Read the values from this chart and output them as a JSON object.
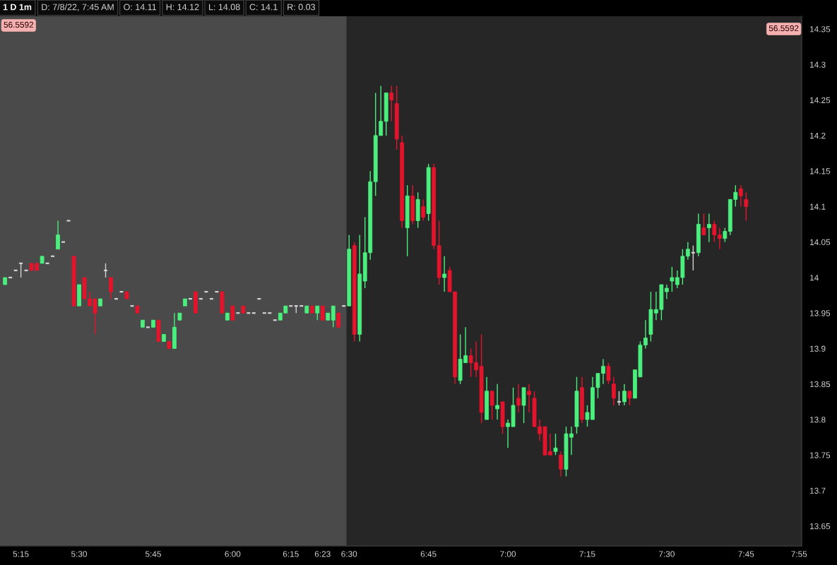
{
  "chart_data": {
    "type": "candlestick",
    "title": "1 D 1m",
    "annotations": [
      "D: 7/8/22, 7:45 AM",
      "O: 14.11",
      "H: 14.12",
      "L: 14.08",
      "C: 14.1",
      "R: 0.03",
      "56.5592",
      "56.5592"
    ],
    "categories": [
      null,
      null,
      null,
      "5:15",
      null,
      null,
      null,
      null,
      null,
      null,
      null,
      null,
      null,
      null,
      "5:30",
      null,
      null,
      null,
      null,
      null,
      null,
      null,
      null,
      null,
      null,
      null,
      null,
      null,
      "5:45",
      null,
      null,
      null,
      null,
      null,
      null,
      null,
      null,
      null,
      null,
      null,
      null,
      null,
      null,
      "6:00",
      null,
      null,
      null,
      null,
      null,
      null,
      null,
      null,
      null,
      null,
      "6:15",
      null,
      null,
      null,
      null,
      null,
      "6:23",
      null,
      null,
      null,
      null,
      "6:30",
      null,
      null,
      null,
      null,
      null,
      null,
      null,
      null,
      null,
      null,
      null,
      null,
      null,
      null,
      "6:45",
      null,
      null,
      null,
      null,
      null,
      null,
      null,
      null,
      null,
      null,
      null,
      null,
      null,
      null,
      "7:00",
      null,
      null,
      null,
      null,
      null,
      null,
      null,
      null,
      null,
      null,
      null,
      null,
      null,
      null,
      "7:15",
      null,
      null,
      null,
      null,
      null,
      null,
      null,
      null,
      null,
      null,
      null,
      null,
      null,
      null,
      "7:30",
      null,
      null,
      null,
      null,
      null,
      null,
      null,
      null,
      null,
      null,
      null,
      null,
      null,
      null,
      "7:45",
      null,
      null,
      null,
      null,
      null,
      null,
      null,
      null,
      null,
      "7:55"
    ],
    "ohlc": [
      [
        13.99,
        14.0,
        13.99,
        14.0
      ],
      [
        14.0,
        14.0,
        14.0,
        14.0
      ],
      [
        14.01,
        14.01,
        14.01,
        14.01
      ],
      [
        14.02,
        14.02,
        14.0,
        14.02
      ],
      [
        14.01,
        14.01,
        14.01,
        14.01
      ],
      [
        14.02,
        14.02,
        14.01,
        14.01
      ],
      [
        14.02,
        14.02,
        14.01,
        14.01
      ],
      [
        14.02,
        14.03,
        14.02,
        14.03
      ],
      [
        14.02,
        14.02,
        14.02,
        14.02
      ],
      [
        14.03,
        14.03,
        14.03,
        14.03
      ],
      [
        14.04,
        14.08,
        14.04,
        14.06
      ],
      [
        14.05,
        14.05,
        14.05,
        14.05
      ],
      [
        14.08,
        14.08,
        14.08,
        14.08
      ],
      [
        14.03,
        14.03,
        13.96,
        13.96
      ],
      [
        13.96,
        13.99,
        13.96,
        13.99
      ],
      [
        14.0,
        14.0,
        13.97,
        13.97
      ],
      [
        13.97,
        13.98,
        13.96,
        13.96
      ],
      [
        13.97,
        13.97,
        13.92,
        13.95
      ],
      [
        13.96,
        13.97,
        13.96,
        13.97
      ],
      [
        14.01,
        14.02,
        14.0,
        14.01
      ],
      [
        14.0,
        14.0,
        13.97,
        13.98
      ],
      [
        13.97,
        13.97,
        13.97,
        13.97
      ],
      [
        13.98,
        13.98,
        13.98,
        13.98
      ],
      [
        13.98,
        13.98,
        13.97,
        13.97
      ],
      [
        13.96,
        13.96,
        13.96,
        13.96
      ],
      [
        13.96,
        13.96,
        13.95,
        13.95
      ],
      [
        13.93,
        13.94,
        13.93,
        13.94
      ],
      [
        13.93,
        13.93,
        13.93,
        13.93
      ],
      [
        13.93,
        13.94,
        13.93,
        13.94
      ],
      [
        13.94,
        13.94,
        13.91,
        13.91
      ],
      [
        13.91,
        13.92,
        13.91,
        13.92
      ],
      [
        13.91,
        13.91,
        13.9,
        13.9
      ],
      [
        13.9,
        13.95,
        13.9,
        13.93
      ],
      [
        13.94,
        13.95,
        13.94,
        13.95
      ],
      [
        13.96,
        13.97,
        13.96,
        13.97
      ],
      [
        13.97,
        13.97,
        13.97,
        13.97
      ],
      [
        13.98,
        13.98,
        13.95,
        13.95
      ],
      [
        13.97,
        13.97,
        13.97,
        13.97
      ],
      [
        13.98,
        13.98,
        13.98,
        13.98
      ],
      [
        13.97,
        13.97,
        13.97,
        13.97
      ],
      [
        13.98,
        13.98,
        13.98,
        13.98
      ],
      [
        13.98,
        13.98,
        13.95,
        13.95
      ],
      [
        13.94,
        13.95,
        13.94,
        13.95
      ],
      [
        13.96,
        13.96,
        13.94,
        13.94
      ],
      [
        13.95,
        13.95,
        13.95,
        13.95
      ],
      [
        13.96,
        13.96,
        13.95,
        13.95
      ],
      [
        13.95,
        13.95,
        13.95,
        13.95
      ],
      [
        13.95,
        13.95,
        13.95,
        13.95
      ],
      [
        13.97,
        13.97,
        13.97,
        13.97
      ],
      [
        13.95,
        13.95,
        13.95,
        13.95
      ],
      [
        13.95,
        13.95,
        13.95,
        13.95
      ],
      [
        13.94,
        13.94,
        13.94,
        13.94
      ],
      [
        13.94,
        13.95,
        13.94,
        13.95
      ],
      [
        13.95,
        13.96,
        13.95,
        13.96
      ],
      [
        13.96,
        13.96,
        13.96,
        13.96
      ],
      [
        13.96,
        13.96,
        13.95,
        13.96
      ],
      [
        13.96,
        13.96,
        13.96,
        13.96
      ],
      [
        13.95,
        13.96,
        13.95,
        13.96
      ],
      [
        13.96,
        13.96,
        13.95,
        13.95
      ],
      [
        13.95,
        13.96,
        13.94,
        13.96
      ],
      [
        13.96,
        13.96,
        13.94,
        13.94
      ],
      [
        13.94,
        13.95,
        13.94,
        13.95
      ],
      [
        13.94,
        13.96,
        13.93,
        13.96
      ],
      [
        13.95,
        13.95,
        13.93,
        13.93
      ],
      [
        13.96,
        13.96,
        13.96,
        13.96
      ],
      [
        13.96,
        14.06,
        13.96,
        14.04
      ],
      [
        14.045,
        14.05,
        13.91,
        13.92
      ],
      [
        13.92,
        14.06,
        13.91,
        14.005
      ],
      [
        13.995,
        14.085,
        13.985,
        14.035
      ],
      [
        14.035,
        14.15,
        14.025,
        14.135
      ],
      [
        14.135,
        14.26,
        14.115,
        14.2
      ],
      [
        14.2,
        14.27,
        14.2,
        14.22
      ],
      [
        14.22,
        14.26,
        14.2,
        14.26
      ],
      [
        14.26,
        14.27,
        14.22,
        14.25
      ],
      [
        14.245,
        14.27,
        14.18,
        14.195
      ],
      [
        14.19,
        14.2,
        14.07,
        14.08
      ],
      [
        14.07,
        14.13,
        14.03,
        14.115
      ],
      [
        14.115,
        14.13,
        14.075,
        14.08
      ],
      [
        14.08,
        14.12,
        14.07,
        14.11
      ],
      [
        14.1,
        14.11,
        14.08,
        14.085
      ],
      [
        14.09,
        14.16,
        14.08,
        14.155
      ],
      [
        14.155,
        14.16,
        14.04,
        14.045
      ],
      [
        14.045,
        14.08,
        13.99,
        14.0
      ],
      [
        14.0,
        14.03,
        13.98,
        14.005
      ],
      [
        14.01,
        14.015,
        13.98,
        13.98
      ],
      [
        13.98,
        13.98,
        13.85,
        13.86
      ],
      [
        13.855,
        13.92,
        13.85,
        13.885
      ],
      [
        13.88,
        13.93,
        13.88,
        13.89
      ],
      [
        13.89,
        13.9,
        13.86,
        13.88
      ],
      [
        13.88,
        13.91,
        13.86,
        13.87
      ],
      [
        13.875,
        13.92,
        13.795,
        13.81
      ],
      [
        13.8,
        13.86,
        13.8,
        13.84
      ],
      [
        13.84,
        13.84,
        13.8,
        13.82
      ],
      [
        13.815,
        13.85,
        13.8,
        13.82
      ],
      [
        13.825,
        13.825,
        13.78,
        13.79
      ],
      [
        13.79,
        13.8,
        13.76,
        13.795
      ],
      [
        13.79,
        13.845,
        13.79,
        13.82
      ],
      [
        13.83,
        13.85,
        13.81,
        13.82
      ],
      [
        13.82,
        13.845,
        13.795,
        13.845
      ],
      [
        13.84,
        13.85,
        13.81,
        13.835
      ],
      [
        13.83,
        13.84,
        13.79,
        13.79
      ],
      [
        13.79,
        13.8,
        13.77,
        13.78
      ],
      [
        13.79,
        13.79,
        13.75,
        13.75
      ],
      [
        13.755,
        13.78,
        13.75,
        13.75
      ],
      [
        13.755,
        13.78,
        13.75,
        13.76
      ],
      [
        13.75,
        13.755,
        13.72,
        13.73
      ],
      [
        13.73,
        13.79,
        13.72,
        13.78
      ],
      [
        13.775,
        13.79,
        13.75,
        13.78
      ],
      [
        13.79,
        13.86,
        13.78,
        13.84
      ],
      [
        13.845,
        13.86,
        13.795,
        13.8
      ],
      [
        13.8,
        13.82,
        13.79,
        13.81
      ],
      [
        13.8,
        13.86,
        13.8,
        13.845
      ],
      [
        13.845,
        13.865,
        13.83,
        13.865
      ],
      [
        13.865,
        13.885,
        13.85,
        13.875
      ],
      [
        13.875,
        13.88,
        13.85,
        13.855
      ],
      [
        13.85,
        13.86,
        13.82,
        13.83
      ],
      [
        13.825,
        13.84,
        13.82,
        13.825
      ],
      [
        13.825,
        13.85,
        13.82,
        13.84
      ],
      [
        13.84,
        13.84,
        13.82,
        13.83
      ],
      [
        13.83,
        13.87,
        13.83,
        13.87
      ],
      [
        13.86,
        13.91,
        13.86,
        13.905
      ],
      [
        13.905,
        13.94,
        13.9,
        13.915
      ],
      [
        13.92,
        13.98,
        13.91,
        13.955
      ],
      [
        13.95,
        13.98,
        13.94,
        13.955
      ],
      [
        13.955,
        13.99,
        13.94,
        13.99
      ],
      [
        13.98,
        13.99,
        13.97,
        13.985
      ],
      [
        13.995,
        14.015,
        13.98,
        14.0
      ],
      [
        13.99,
        14.01,
        13.985,
        14.0
      ],
      [
        14.0,
        14.04,
        13.99,
        14.03
      ],
      [
        14.03,
        14.05,
        14.025,
        14.04
      ],
      [
        14.035,
        14.045,
        14.01,
        14.035
      ],
      [
        14.035,
        14.09,
        14.03,
        14.075
      ],
      [
        14.07,
        14.09,
        14.06,
        14.06
      ],
      [
        14.07,
        14.09,
        14.05,
        14.075
      ],
      [
        14.075,
        14.08,
        14.05,
        14.06
      ],
      [
        14.06,
        14.07,
        14.04,
        14.055
      ],
      [
        14.055,
        14.07,
        14.05,
        14.065
      ],
      [
        14.065,
        14.11,
        14.06,
        14.11
      ],
      [
        14.11,
        14.13,
        14.1,
        14.12
      ],
      [
        14.125,
        14.13,
        14.1,
        14.115
      ],
      [
        14.11,
        14.12,
        14.08,
        14.1
      ],
      null,
      null,
      null,
      null,
      null,
      null,
      null,
      null,
      null,
      null
    ],
    "colors": [
      "#4cef7e",
      "#d2d2d2",
      "#d2d2d2",
      "#d2d2d2",
      "#d2d2d2",
      "#e3142c",
      "#e3142c",
      "#4cef7e",
      "#d2d2d2",
      "#d2d2d2",
      "#4cef7e",
      "#d2d2d2",
      "#d2d2d2",
      "#e3142c",
      "#4cef7e",
      "#e3142c",
      "#e3142c",
      "#e3142c",
      "#4cef7e",
      "#d2d2d2",
      "#e3142c",
      "#d2d2d2",
      "#d2d2d2",
      "#e3142c",
      "#d2d2d2",
      "#e3142c",
      "#4cef7e",
      "#d2d2d2",
      "#4cef7e",
      "#e3142c",
      "#4cef7e",
      "#e3142c",
      "#4cef7e",
      "#4cef7e",
      "#4cef7e",
      "#d2d2d2",
      "#e3142c",
      "#d2d2d2",
      "#d2d2d2",
      "#d2d2d2",
      "#d2d2d2",
      "#e3142c",
      "#4cef7e",
      "#e3142c",
      "#d2d2d2",
      "#e3142c",
      "#d2d2d2",
      "#d2d2d2",
      "#d2d2d2",
      "#d2d2d2",
      "#d2d2d2",
      "#d2d2d2",
      "#4cef7e",
      "#4cef7e",
      "#d2d2d2",
      "#d2d2d2",
      "#d2d2d2",
      "#4cef7e",
      "#e3142c",
      "#4cef7e",
      "#e3142c",
      "#4cef7e",
      "#4cef7e",
      "#e3142c",
      "#d2d2d2",
      "#4cef7e",
      "#e3142c",
      "#4cef7e",
      "#4cef7e",
      "#4cef7e",
      "#4cef7e",
      "#4cef7e",
      "#4cef7e",
      "#e3142c",
      "#e3142c",
      "#e3142c",
      "#4cef7e",
      "#e3142c",
      "#4cef7e",
      "#e3142c",
      "#4cef7e",
      "#e3142c",
      "#e3142c",
      "#4cef7e",
      "#e3142c",
      "#e3142c",
      "#4cef7e",
      "#4cef7e",
      "#e3142c",
      "#e3142c",
      "#e3142c",
      "#4cef7e",
      "#e3142c",
      "#4cef7e",
      "#e3142c",
      "#4cef7e",
      "#4cef7e",
      "#e3142c",
      "#4cef7e",
      "#e3142c",
      "#e3142c",
      "#e3142c",
      "#e3142c",
      "#e3142c",
      "#4cef7e",
      "#e3142c",
      "#4cef7e",
      "#4cef7e",
      "#4cef7e",
      "#e3142c",
      "#4cef7e",
      "#4cef7e",
      "#4cef7e",
      "#4cef7e",
      "#e3142c",
      "#e3142c",
      "#d2d2d2",
      "#4cef7e",
      "#e3142c",
      "#4cef7e",
      "#4cef7e",
      "#4cef7e",
      "#4cef7e",
      "#4cef7e",
      "#4cef7e",
      "#4cef7e",
      "#4cef7e",
      "#4cef7e",
      "#4cef7e",
      "#4cef7e",
      "#d2d2d2",
      "#4cef7e",
      "#e3142c",
      "#4cef7e",
      "#e3142c",
      "#e3142c",
      "#4cef7e",
      "#4cef7e",
      "#4cef7e",
      "#e3142c",
      "#e3142c",
      null,
      null,
      null,
      null,
      null,
      null,
      null,
      null,
      null,
      null
    ],
    "ylim": [
      13.622,
      14.368
    ],
    "yticks": [
      13.65,
      13.7,
      13.75,
      13.8,
      13.85,
      13.9,
      13.95,
      14,
      14.05,
      14.1,
      14.15,
      14.2,
      14.25,
      14.3,
      14.35
    ],
    "bands": [
      {
        "axis": "x",
        "from": "6:30",
        "to": "7:55",
        "color": "#262626"
      }
    ]
  }
}
